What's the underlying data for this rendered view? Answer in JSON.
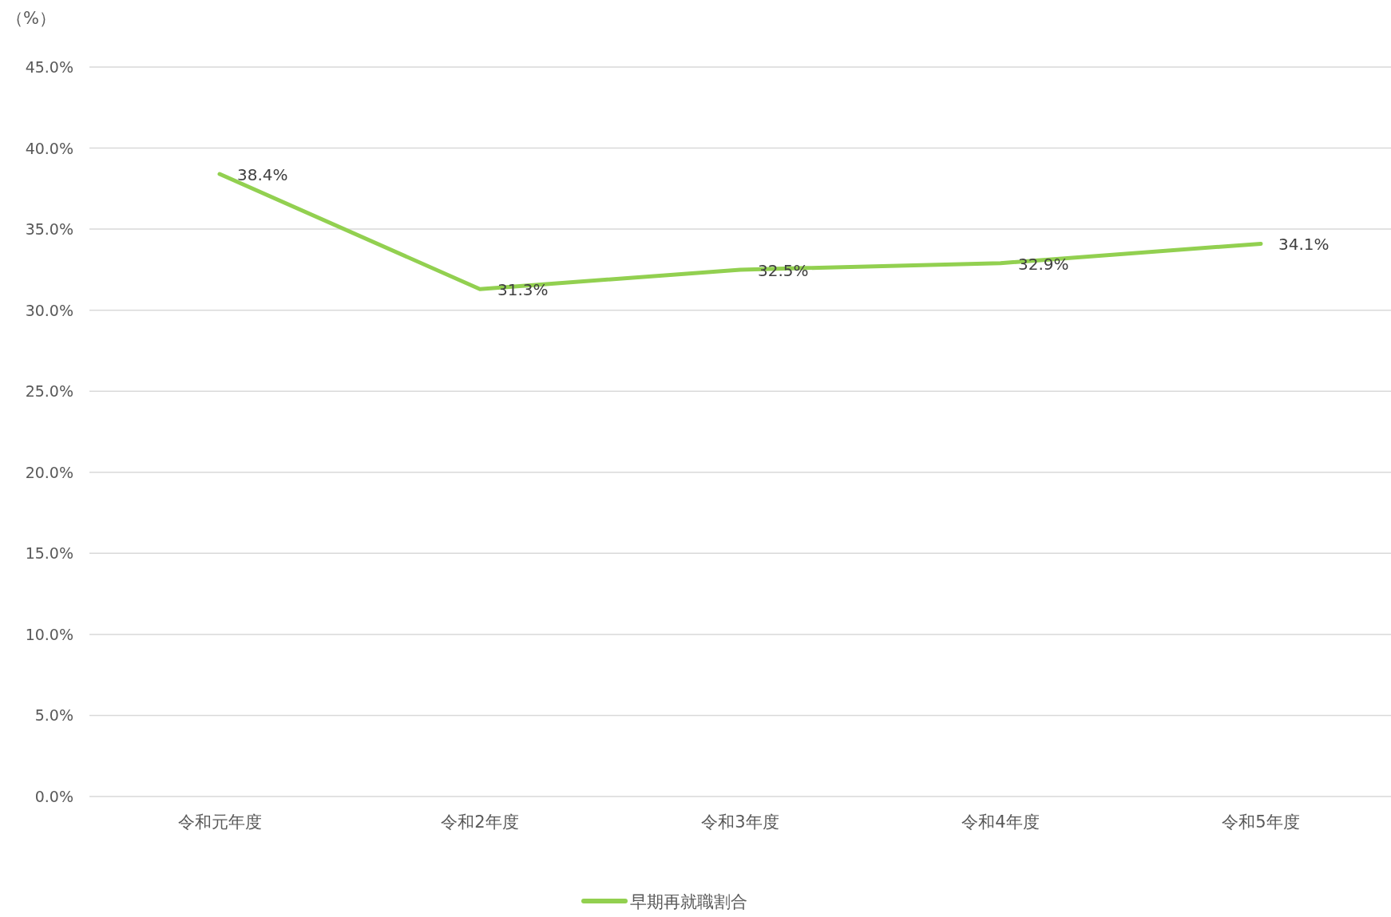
{
  "chart_data": {
    "type": "line",
    "ylabel": "（%）",
    "categories": [
      "令和元年度",
      "令和2年度",
      "令和3年度",
      "令和4年度",
      "令和5年度"
    ],
    "series": [
      {
        "name": "早期再就職割合",
        "color": "#92d050",
        "values": [
          38.4,
          31.3,
          32.5,
          32.9,
          34.1
        ],
        "value_labels": [
          "38.4%",
          "31.3%",
          "32.5%",
          "32.9%",
          "34.1%"
        ]
      }
    ],
    "ylim": [
      0,
      45
    ],
    "yticks": [
      {
        "value": 0,
        "label": "0.0%"
      },
      {
        "value": 5,
        "label": "5.0%"
      },
      {
        "value": 10,
        "label": "10.0%"
      },
      {
        "value": 15,
        "label": "15.0%"
      },
      {
        "value": 20,
        "label": "20.0%"
      },
      {
        "value": 25,
        "label": "25.0%"
      },
      {
        "value": 30,
        "label": "30.0%"
      },
      {
        "value": 35,
        "label": "35.0%"
      },
      {
        "value": 40,
        "label": "40.0%"
      },
      {
        "value": 45,
        "label": "45.0%"
      }
    ],
    "grid": "y",
    "legend": "bottom",
    "marker": "none",
    "line_style": "solid"
  }
}
